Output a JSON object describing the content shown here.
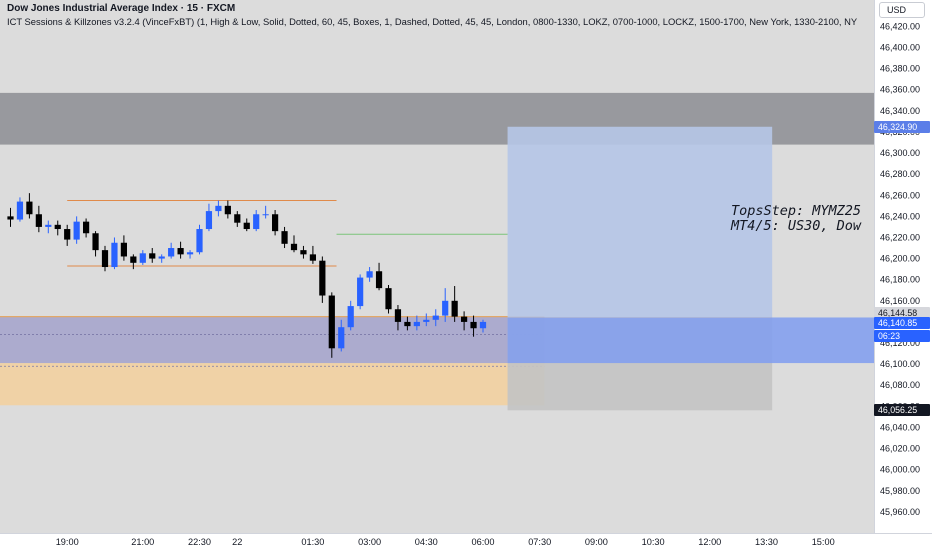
{
  "header": {
    "title": "Dow Jones Industrial Average Index · 15 · FXCM",
    "indicator": "ICT Sessions & Killzones v3.2.4 (VinceFxBT) (1, High & Low, Solid, Dotted, 60, 45, Boxes, 1, Dashed, Dotted, 45, 45, London, 0800-1330, LOKZ, 0700-1000, LOCKZ, 1500-1700, New York, 1330-2100, NY"
  },
  "currency_button": "USD",
  "annotation": {
    "line1": "TopsStep: MYMZ25",
    "line2": "MT4/5: US30, Dow"
  },
  "price_tags": {
    "target": "46,324.90",
    "entry": "46,144.58",
    "current": "46,140.85",
    "countdown": "06:23",
    "stop": "46,056.25"
  },
  "colors": {
    "bull": "#2962ff",
    "bear": "#000000",
    "background": "#dcdcdc",
    "profit_zone": "#b5c5e6",
    "loss_zone": "#c3c3c3",
    "session_orange": "#f0d2a6",
    "session_blue": "#a9a8cc",
    "grey_zone": "#8c8d93",
    "current_price_band": "#7f9cf0"
  },
  "chart_data": {
    "type": "candlestick",
    "instrument": "Dow Jones Industrial Average Index",
    "timeframe": "15",
    "source": "FXCM",
    "y_range": [
      45940,
      46445
    ],
    "y_ticks": [
      45960,
      45980,
      46000,
      46020,
      46040,
      46060,
      46080,
      46100,
      46120,
      46140,
      46160,
      46180,
      46200,
      46220,
      46240,
      46260,
      46280,
      46300,
      46320,
      46340,
      46360,
      46380,
      46400,
      46420
    ],
    "y_tick_labels": [
      "45,960.00",
      "45,980.00",
      "46,000.00",
      "46,020.00",
      "46,040.00",
      "46,060.00",
      "46,080.00",
      "46,100.00",
      "46,120.00",
      "46,140.00",
      "46,160.00",
      "46,180.00",
      "46,200.00",
      "46,220.00",
      "46,240.00",
      "46,260.00",
      "46,280.00",
      "46,300.00",
      "46,320.00",
      "46,340.00",
      "46,360.00",
      "46,380.00",
      "46,400.00",
      "46,420.00"
    ],
    "x_time_labels": [
      {
        "label": "19:00",
        "slot": 6
      },
      {
        "label": "21:00",
        "slot": 14
      },
      {
        "label": "22:30",
        "slot": 20
      },
      {
        "label": "22",
        "slot": 24
      },
      {
        "label": "01:30",
        "slot": 32
      },
      {
        "label": "03:00",
        "slot": 38
      },
      {
        "label": "04:30",
        "slot": 44
      },
      {
        "label": "06:00",
        "slot": 50
      },
      {
        "label": "07:30",
        "slot": 56
      },
      {
        "label": "09:00",
        "slot": 62
      },
      {
        "label": "10:30",
        "slot": 68
      },
      {
        "label": "12:00",
        "slot": 74
      },
      {
        "label": "13:30",
        "slot": 80
      },
      {
        "label": "15:00",
        "slot": 86
      }
    ],
    "candles": [
      [
        46240,
        46248,
        46230,
        46237
      ],
      [
        46237,
        46258,
        46235,
        46254
      ],
      [
        46254,
        46262,
        46238,
        46242
      ],
      [
        46242,
        46250,
        46225,
        46230
      ],
      [
        46230,
        46236,
        46224,
        46232
      ],
      [
        46232,
        46236,
        46222,
        46228
      ],
      [
        46228,
        46232,
        46212,
        46218
      ],
      [
        46218,
        46240,
        46214,
        46235
      ],
      [
        46235,
        46238,
        46220,
        46224
      ],
      [
        46224,
        46226,
        46202,
        46208
      ],
      [
        46208,
        46212,
        46188,
        46192
      ],
      [
        46192,
        46220,
        46190,
        46215
      ],
      [
        46215,
        46222,
        46198,
        46202
      ],
      [
        46202,
        46204,
        46190,
        46196
      ],
      [
        46196,
        46208,
        46194,
        46205
      ],
      [
        46205,
        46210,
        46196,
        46200
      ],
      [
        46200,
        46204,
        46196,
        46202
      ],
      [
        46202,
        46215,
        46200,
        46210
      ],
      [
        46210,
        46216,
        46200,
        46204
      ],
      [
        46204,
        46208,
        46200,
        46206
      ],
      [
        46206,
        46232,
        46204,
        46228
      ],
      [
        46228,
        46252,
        46226,
        46245
      ],
      [
        46245,
        46255,
        46240,
        46250
      ],
      [
        46250,
        46255,
        46238,
        46242
      ],
      [
        46242,
        46245,
        46230,
        46234
      ],
      [
        46234,
        46238,
        46226,
        46228
      ],
      [
        46228,
        46246,
        46226,
        46242
      ],
      [
        46242,
        46250,
        46238,
        46242
      ],
      [
        46242,
        46246,
        46222,
        46226
      ],
      [
        46226,
        46230,
        46210,
        46214
      ],
      [
        46214,
        46222,
        46206,
        46208
      ],
      [
        46208,
        46212,
        46200,
        46204
      ],
      [
        46204,
        46212,
        46195,
        46198
      ],
      [
        46198,
        46202,
        46158,
        46165
      ],
      [
        46165,
        46168,
        46106,
        46115
      ],
      [
        46115,
        46142,
        46112,
        46135
      ],
      [
        46135,
        46160,
        46132,
        46155
      ],
      [
        46155,
        46185,
        46152,
        46182
      ],
      [
        46182,
        46192,
        46178,
        46188
      ],
      [
        46188,
        46196,
        46170,
        46172
      ],
      [
        46172,
        46175,
        46148,
        46152
      ],
      [
        46152,
        46156,
        46132,
        46140
      ],
      [
        46140,
        46145,
        46132,
        46136
      ],
      [
        46136,
        46146,
        46132,
        46140
      ],
      [
        46140,
        46148,
        46136,
        46142
      ],
      [
        46142,
        46152,
        46136,
        46146
      ],
      [
        46146,
        46172,
        46140,
        46160
      ],
      [
        46160,
        46174,
        46140,
        46145
      ],
      [
        46145,
        46150,
        46132,
        46140
      ],
      [
        46140,
        46146,
        46126,
        46134
      ],
      [
        46134,
        46142,
        46130,
        46140
      ]
    ],
    "zones": {
      "grey_band": [
        46308,
        46357
      ],
      "position_target": 46324.9,
      "position_entry": 46144.58,
      "position_stop": 46056.25,
      "session_blue_box": [
        46101,
        46145
      ],
      "session_orange_box": [
        46061,
        46101
      ],
      "asia_high": 46255,
      "asia_low": 46193,
      "green_level": 46223
    }
  }
}
